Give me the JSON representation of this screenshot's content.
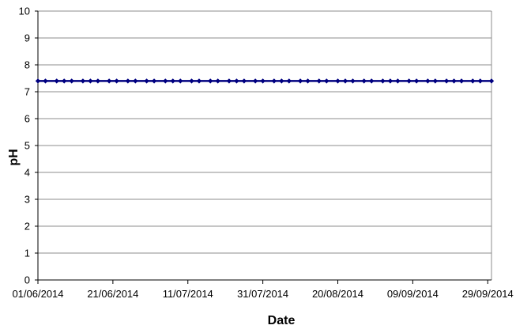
{
  "chart_data": {
    "type": "line",
    "xlabel": "Date",
    "ylabel": "pH",
    "ylim": [
      0,
      10
    ],
    "y_ticks": [
      "0",
      "1",
      "2",
      "3",
      "4",
      "5",
      "6",
      "7",
      "8",
      "9",
      "10"
    ],
    "xlim": [
      "01/06/2014",
      "30/09/2014"
    ],
    "x_ticks": [
      "01/06/2014",
      "21/06/2014",
      "11/07/2014",
      "31/07/2014",
      "20/08/2014",
      "09/09/2014",
      "29/09/2014"
    ],
    "grid": true,
    "series": [
      {
        "marker": "diamond",
        "color": "#000080",
        "x": [
          "01/06/2014",
          "03/06/2014",
          "06/06/2014",
          "08/06/2014",
          "10/06/2014",
          "13/06/2014",
          "15/06/2014",
          "17/06/2014",
          "20/06/2014",
          "22/06/2014",
          "25/06/2014",
          "27/06/2014",
          "30/06/2014",
          "02/07/2014",
          "05/07/2014",
          "07/07/2014",
          "09/07/2014",
          "12/07/2014",
          "14/07/2014",
          "17/07/2014",
          "19/07/2014",
          "22/07/2014",
          "24/07/2014",
          "26/07/2014",
          "29/07/2014",
          "31/07/2014",
          "03/08/2014",
          "05/08/2014",
          "07/08/2014",
          "10/08/2014",
          "12/08/2014",
          "15/08/2014",
          "17/08/2014",
          "20/08/2014",
          "22/08/2014",
          "24/08/2014",
          "27/08/2014",
          "29/08/2014",
          "01/09/2014",
          "03/09/2014",
          "05/09/2014",
          "08/09/2014",
          "10/09/2014",
          "13/09/2014",
          "15/09/2014",
          "18/09/2014",
          "20/09/2014",
          "22/09/2014",
          "25/09/2014",
          "27/09/2014",
          "30/09/2014"
        ],
        "values": [
          7.4,
          7.4,
          7.4,
          7.4,
          7.4,
          7.4,
          7.4,
          7.4,
          7.4,
          7.4,
          7.4,
          7.4,
          7.4,
          7.4,
          7.4,
          7.4,
          7.4,
          7.4,
          7.4,
          7.4,
          7.4,
          7.4,
          7.4,
          7.4,
          7.4,
          7.4,
          7.4,
          7.4,
          7.4,
          7.4,
          7.4,
          7.4,
          7.4,
          7.4,
          7.4,
          7.4,
          7.4,
          7.4,
          7.4,
          7.4,
          7.4,
          7.4,
          7.4,
          7.4,
          7.4,
          7.4,
          7.4,
          7.4,
          7.4,
          7.4,
          7.4
        ]
      }
    ]
  }
}
